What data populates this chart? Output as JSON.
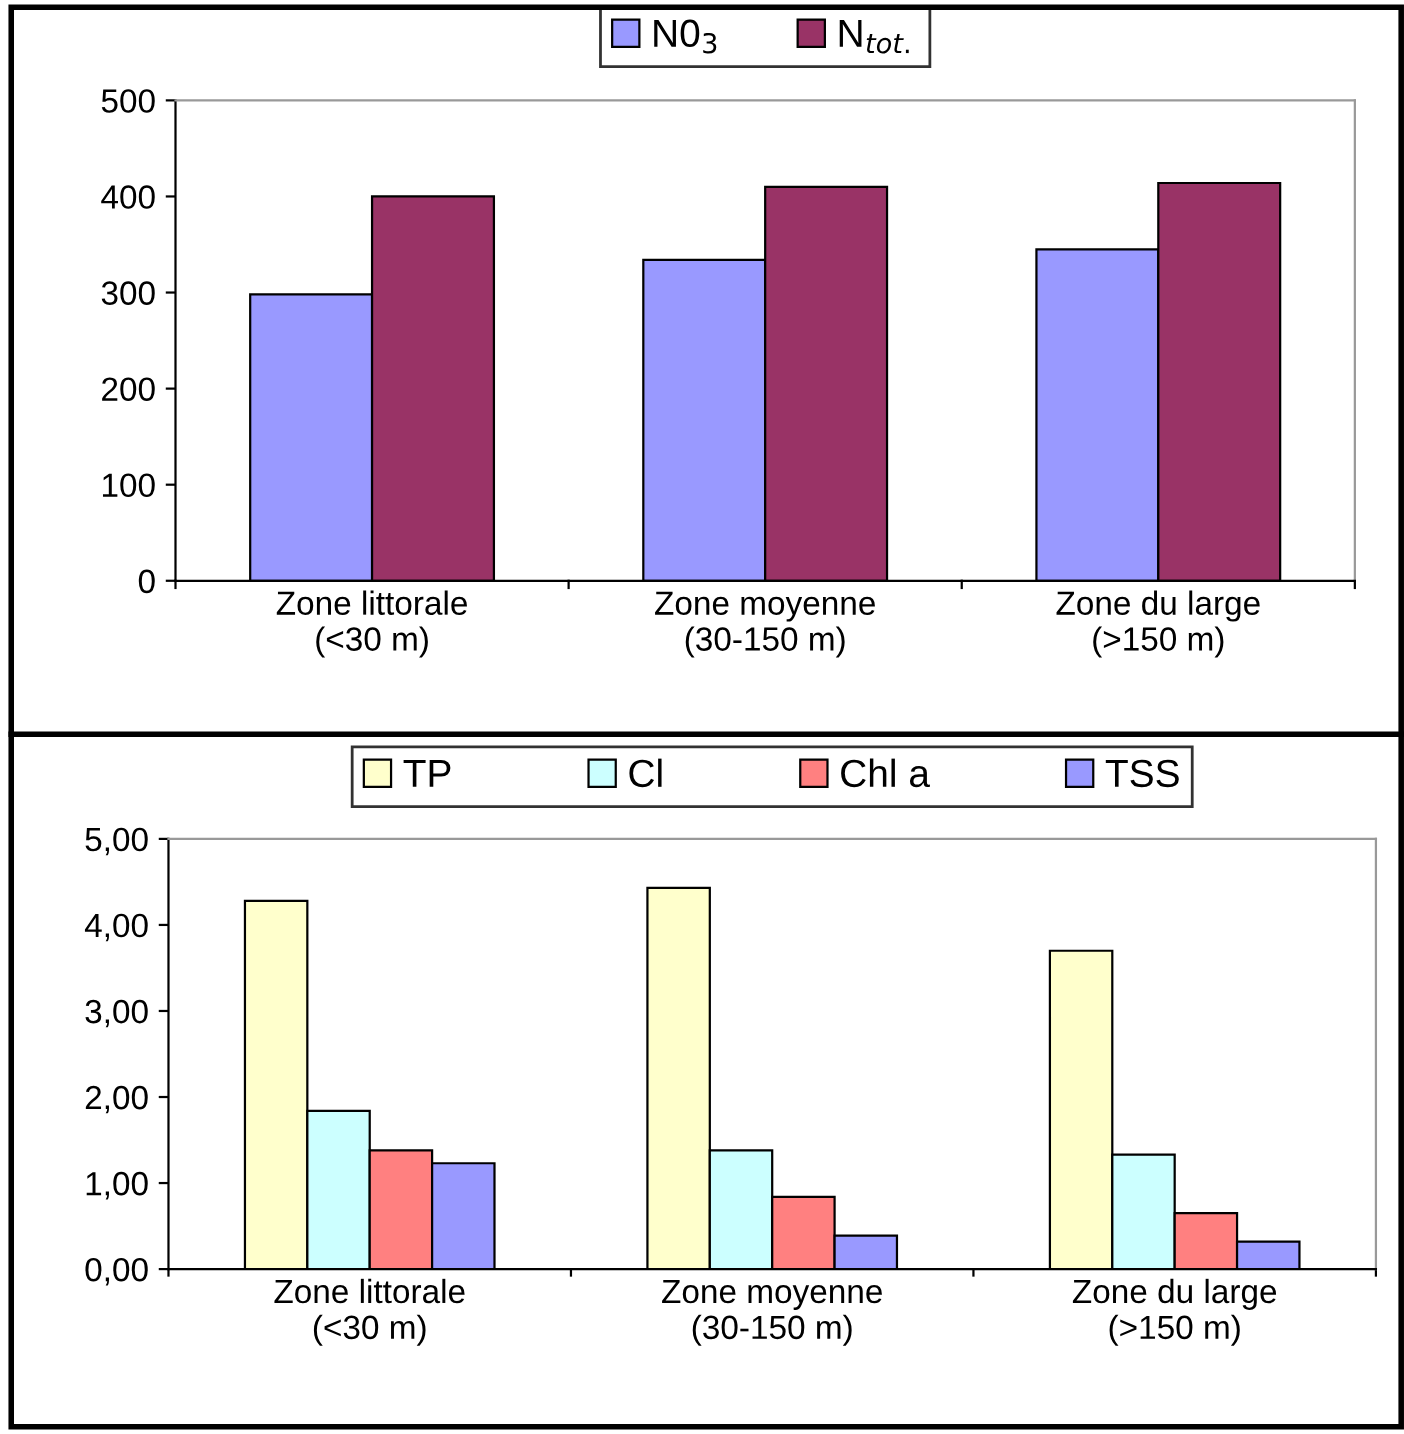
{
  "chart_data": [
    {
      "type": "bar",
      "categories": [
        "Zone littorale\n(<30 m)",
        "Zone moyenne\n(30-150 m)",
        "Zone du large\n(>150 m)"
      ],
      "series": [
        {
          "name": "N0$_{3}$",
          "color": "#9999ff",
          "values": [
            298,
            334,
            345
          ]
        },
        {
          "name": "N$_{tot.}$",
          "color": "#993366",
          "values": [
            400,
            410,
            414
          ]
        }
      ],
      "ylim": [
        0,
        500
      ],
      "yticks": [
        0,
        100,
        200,
        300,
        400,
        500
      ],
      "legend": "top",
      "grid": false
    },
    {
      "type": "bar",
      "categories": [
        "Zone littorale\n(<30 m)",
        "Zone moyenne\n(30-150 m)",
        "Zone du large\n(>150 m)"
      ],
      "series": [
        {
          "name": "TP",
          "color": "#ffffcc",
          "values": [
            4.28,
            4.43,
            3.7
          ]
        },
        {
          "name": "Cl",
          "color": "#ccffff",
          "values": [
            1.84,
            1.38,
            1.33
          ]
        },
        {
          "name": "Chl a",
          "color": "#ff8080",
          "values": [
            1.38,
            0.84,
            0.65
          ]
        },
        {
          "name": "TSS",
          "color": "#9999ff",
          "values": [
            1.23,
            0.39,
            0.32
          ]
        }
      ],
      "ylim": [
        0,
        5
      ],
      "yticks": [
        {
          "value": 0,
          "label": "0,00"
        },
        {
          "value": 1,
          "label": "1,00"
        },
        {
          "value": 2,
          "label": "2,00"
        },
        {
          "value": 3,
          "label": "3,00"
        },
        {
          "value": 4,
          "label": "4,00"
        },
        {
          "value": 5,
          "label": "5,00"
        }
      ],
      "legend": "top",
      "grid": false
    }
  ]
}
